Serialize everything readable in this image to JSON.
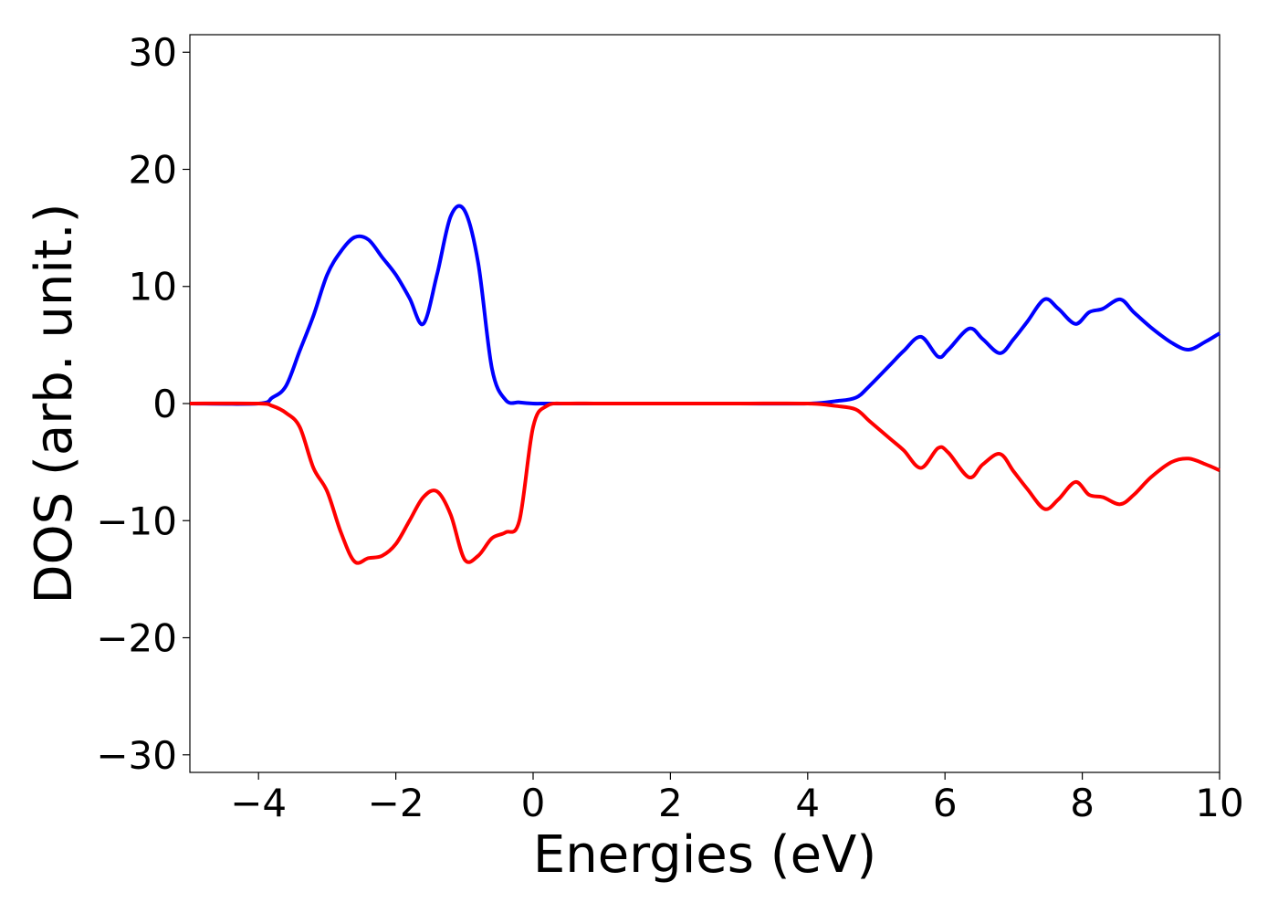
{
  "chart_data": {
    "type": "line",
    "title": "",
    "xlabel": "Energies (eV)",
    "ylabel": "DOS (arb. unit.)",
    "xlim": [
      -5,
      10
    ],
    "ylim": [
      -31.5,
      31.5
    ],
    "xticks": [
      -4,
      -2,
      0,
      2,
      4,
      6,
      8,
      10
    ],
    "yticks": [
      30,
      20,
      10,
      0,
      -10,
      -20,
      -30
    ],
    "xtick_labels": [
      "−4",
      "−2",
      "0",
      "2",
      "4",
      "6",
      "8",
      "10"
    ],
    "ytick_labels": [
      "30",
      "20",
      "10",
      "0",
      "−10",
      "−20",
      "−30"
    ],
    "grid": false,
    "legend": "none",
    "series": [
      {
        "color": "#0000ff",
        "x": [
          -5,
          -4.0,
          -3.8,
          -3.6,
          -3.4,
          -3.2,
          -3.0,
          -2.8,
          -2.6,
          -2.4,
          -2.2,
          -2.0,
          -1.8,
          -1.6,
          -1.4,
          -1.2,
          -1.0,
          -0.8,
          -0.6,
          -0.4,
          -0.2,
          0.0,
          0.2,
          0.5,
          1.0,
          2.0,
          3.0,
          4.0,
          4.4,
          4.7,
          4.9,
          5.2,
          5.4,
          5.65,
          5.9,
          6.05,
          6.35,
          6.55,
          6.8,
          7.0,
          7.2,
          7.45,
          7.65,
          7.9,
          8.1,
          8.3,
          8.55,
          8.75,
          9.0,
          9.3,
          9.55,
          9.8,
          10.0
        ],
        "y": [
          0,
          0.0,
          0.5,
          1.5,
          4.5,
          7.5,
          11.0,
          13.0,
          14.2,
          14.0,
          12.5,
          11.0,
          9.0,
          6.8,
          11.0,
          16.0,
          16.5,
          12.0,
          3.0,
          0.3,
          0.1,
          0.0,
          0.0,
          0.0,
          0.0,
          0.0,
          0.0,
          0.0,
          0.2,
          0.5,
          1.5,
          3.3,
          4.5,
          5.7,
          4.0,
          4.6,
          6.4,
          5.5,
          4.3,
          5.5,
          7.0,
          8.9,
          8.1,
          6.8,
          7.8,
          8.1,
          8.9,
          7.8,
          6.5,
          5.2,
          4.6,
          5.3,
          6.0
        ]
      },
      {
        "color": "#ff0000",
        "x": [
          -5,
          -4.0,
          -3.8,
          -3.6,
          -3.4,
          -3.2,
          -3.0,
          -2.8,
          -2.6,
          -2.4,
          -2.2,
          -2.0,
          -1.8,
          -1.6,
          -1.4,
          -1.2,
          -1.0,
          -0.8,
          -0.6,
          -0.4,
          -0.2,
          0.0,
          0.2,
          0.5,
          1.0,
          2.0,
          3.0,
          4.0,
          4.4,
          4.7,
          4.9,
          5.2,
          5.4,
          5.65,
          5.9,
          6.05,
          6.35,
          6.55,
          6.8,
          7.0,
          7.2,
          7.45,
          7.65,
          7.9,
          8.1,
          8.3,
          8.55,
          8.75,
          9.0,
          9.3,
          9.55,
          9.8,
          10.0
        ],
        "y": [
          0,
          0.0,
          -0.2,
          -0.8,
          -2.0,
          -5.5,
          -7.5,
          -11.0,
          -13.5,
          -13.2,
          -13.0,
          -12.0,
          -10.0,
          -8.0,
          -7.5,
          -9.5,
          -13.3,
          -13.0,
          -11.5,
          -11.0,
          -10.0,
          -2.0,
          -0.2,
          0.0,
          0.0,
          0.0,
          0.0,
          0.0,
          -0.2,
          -0.5,
          -1.5,
          -3.0,
          -4.0,
          -5.5,
          -3.8,
          -4.2,
          -6.3,
          -5.2,
          -4.3,
          -5.8,
          -7.3,
          -9.0,
          -8.2,
          -6.7,
          -7.8,
          -8.0,
          -8.6,
          -7.8,
          -6.3,
          -5.0,
          -4.7,
          -5.2,
          -5.7
        ]
      }
    ]
  }
}
